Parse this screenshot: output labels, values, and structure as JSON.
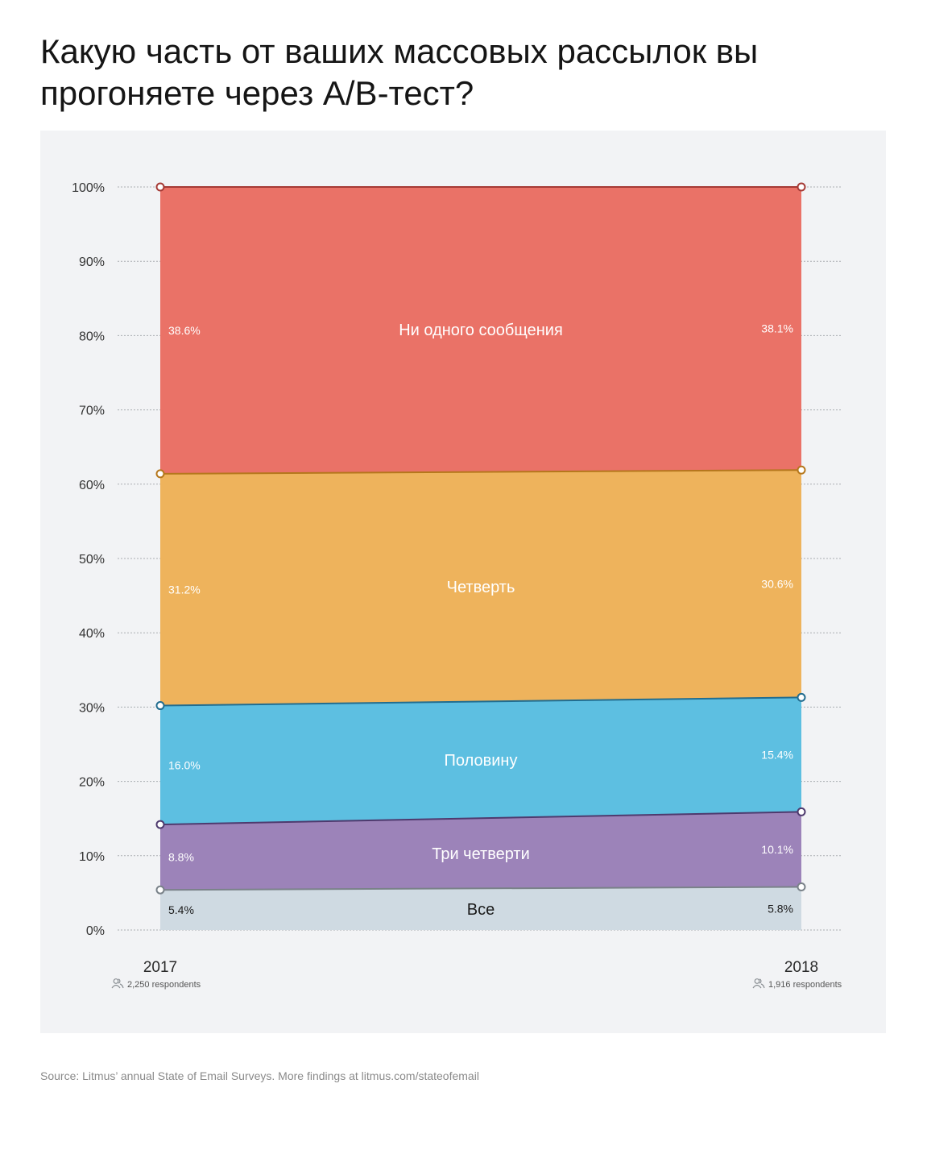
{
  "title": "Какую часть от ваших массовых рассылок вы прогоняете через A/B-тест?",
  "source": "Source: Litmus’ annual State of Email Surveys. More findings at litmus.com/stateofemail",
  "chart_data": {
    "type": "area",
    "stacked": true,
    "x": [
      "2017",
      "2018"
    ],
    "respondents": [
      "2,250 respondents",
      "1,916 respondents"
    ],
    "ylim": [
      0,
      100
    ],
    "yticks": [
      "0%",
      "10%",
      "20%",
      "30%",
      "40%",
      "50%",
      "60%",
      "70%",
      "80%",
      "90%",
      "100%"
    ],
    "grid": true,
    "series": [
      {
        "name": "Все",
        "values": [
          5.4,
          5.8
        ],
        "labels": [
          "5.4%",
          "5.8%"
        ],
        "color": "#cfdae2",
        "line": "#7a8289"
      },
      {
        "name": "Три четверти",
        "values": [
          8.8,
          10.1
        ],
        "labels": [
          "8.8%",
          "10.1%"
        ],
        "color": "#9c83b9",
        "line": "#4e3a6e"
      },
      {
        "name": "Половину",
        "values": [
          16.0,
          15.4
        ],
        "labels": [
          "16.0%",
          "15.4%"
        ],
        "color": "#5dbfe1",
        "line": "#226d8f"
      },
      {
        "name": "Четверть",
        "values": [
          31.2,
          30.6
        ],
        "labels": [
          "31.2%",
          "30.6%"
        ],
        "color": "#eeb35c",
        "line": "#b5771c"
      },
      {
        "name": "Ни одного сообщения",
        "values": [
          38.6,
          38.1
        ],
        "labels": [
          "38.6%",
          "38.1%"
        ],
        "color": "#ea7267",
        "line": "#a53a35"
      }
    ]
  }
}
